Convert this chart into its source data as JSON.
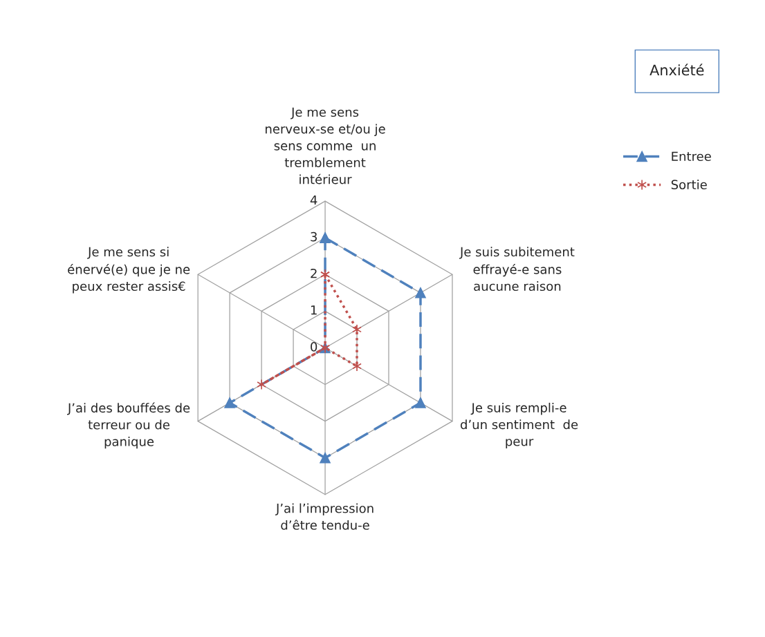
{
  "chart_data": {
    "type": "radar",
    "title": "Anxiété",
    "categories": [
      "Je me sens\nnerveux-se et/ou je\nsens comme  un\ntremblement\nintérieur",
      "Je suis subitement\neffrayé-e sans\naucune raison",
      "Je suis rempli-e\nd’un sentiment  de\npeur",
      "J’ai l’impression\nd’être tendu-e",
      "J’ai des bouffées de\nterreur ou de\npanique",
      "Je me sens si\nénervé(e) que je ne\npeux rester assis€"
    ],
    "series": [
      {
        "name": "Entree",
        "color": "#4f81bd",
        "values": [
          3,
          3,
          3,
          3,
          3,
          0
        ],
        "marker": "triangle",
        "line_style": "dashed"
      },
      {
        "name": "Sortie",
        "color": "#c0504d",
        "values": [
          2,
          1,
          1,
          0,
          2,
          0
        ],
        "marker": "star",
        "line_style": "dotted"
      }
    ],
    "ylim": [
      0,
      4
    ],
    "yticks": [
      0,
      1,
      2,
      3,
      4
    ],
    "grid": true,
    "legend": "right"
  }
}
